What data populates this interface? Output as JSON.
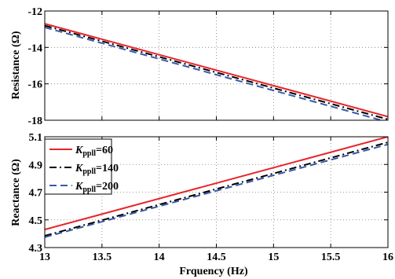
{
  "chart_data": [
    {
      "type": "line",
      "ylabel": "Resistance (Ω)",
      "xlim": [
        13,
        16
      ],
      "ylim": [
        -18,
        -12
      ],
      "yticks": [
        -18,
        -16,
        -14,
        -12
      ],
      "grid": true,
      "series": [
        {
          "name": "Kppll=60",
          "color": "#e8232a",
          "dash": "solid",
          "x": [
            13,
            16
          ],
          "y": [
            -12.7,
            -17.8
          ]
        },
        {
          "name": "Kppll=140",
          "color": "#000000",
          "dash": "dashdot",
          "x": [
            13,
            16
          ],
          "y": [
            -12.8,
            -17.95
          ]
        },
        {
          "name": "Kppll=200",
          "color": "#3a5aa8",
          "dash": "dashed",
          "x": [
            13,
            16
          ],
          "y": [
            -12.9,
            -18.1
          ]
        }
      ]
    },
    {
      "type": "line",
      "xlabel": "Frquency (Hz)",
      "ylabel": "Reactance (Ω)",
      "xlim": [
        13,
        16
      ],
      "ylim": [
        4.3,
        5.1
      ],
      "xticks": [
        13,
        13.5,
        14,
        14.5,
        15,
        15.5,
        16
      ],
      "yticks": [
        4.3,
        4.5,
        4.7,
        4.9,
        5.1
      ],
      "grid": true,
      "legend": "top-left",
      "series": [
        {
          "name": "Kppll=60",
          "color": "#e8232a",
          "dash": "solid",
          "x": [
            13,
            16
          ],
          "y": [
            4.43,
            5.1
          ]
        },
        {
          "name": "Kppll=140",
          "color": "#000000",
          "dash": "dashdot",
          "x": [
            13,
            16
          ],
          "y": [
            4.385,
            5.06
          ]
        },
        {
          "name": "Kppll=200",
          "color": "#3a5aa8",
          "dash": "dashed",
          "x": [
            13,
            16
          ],
          "y": [
            4.375,
            5.045
          ]
        }
      ]
    }
  ],
  "legend": [
    {
      "symbol": "K",
      "sub": "ppll",
      "value": "=60"
    },
    {
      "symbol": "K",
      "sub": "ppll",
      "value": "=140"
    },
    {
      "symbol": "K",
      "sub": "ppll",
      "value": "=200"
    }
  ]
}
